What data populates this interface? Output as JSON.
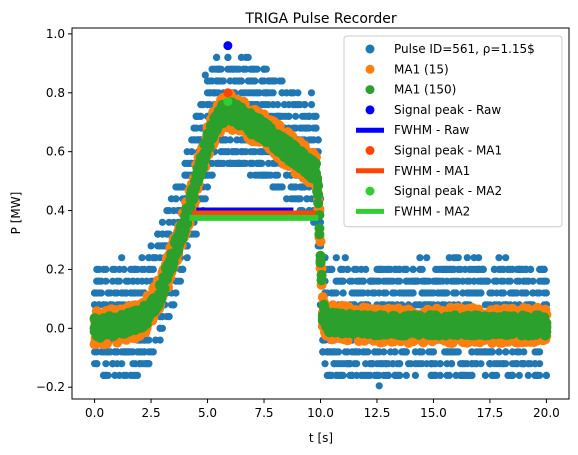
{
  "chart_data": {
    "type": "scatter",
    "title": "TRIGA Pulse Recorder",
    "xlabel": "t [s]",
    "ylabel": "P [MW]",
    "xlim": [
      -1.0,
      21.0
    ],
    "ylim": [
      -0.24,
      1.02
    ],
    "xticks": [
      0.0,
      2.5,
      5.0,
      7.5,
      10.0,
      12.5,
      15.0,
      17.5,
      20.0
    ],
    "xtick_labels": [
      "0.0",
      "2.5",
      "5.0",
      "7.5",
      "10.0",
      "12.5",
      "15.0",
      "17.5",
      "20.0"
    ],
    "yticks": [
      -0.2,
      0.0,
      0.2,
      0.4,
      0.6,
      0.8,
      1.0
    ],
    "ytick_labels": [
      "−0.2",
      "0.0",
      "0.2",
      "0.4",
      "0.6",
      "0.8",
      "1.0"
    ],
    "grid": false,
    "legend_position": "top-right",
    "colors": {
      "raw": "#1f77b4",
      "ma1": "#ff7f0e",
      "ma2": "#2ca02c",
      "peak_raw": "#0000ff",
      "peak_ma1": "#ff4500",
      "peak_ma2": "#32cd32"
    },
    "signal_profile": {
      "t": [
        0.0,
        1.0,
        2.0,
        2.5,
        3.0,
        3.5,
        4.0,
        4.5,
        5.0,
        5.5,
        5.9,
        6.5,
        7.0,
        7.5,
        8.0,
        8.5,
        9.0,
        9.5,
        9.8,
        9.9,
        10.0,
        10.1,
        10.3,
        12.5,
        15.0,
        17.5,
        20.0
      ],
      "p": [
        0.0,
        0.01,
        0.03,
        0.06,
        0.14,
        0.25,
        0.36,
        0.5,
        0.63,
        0.72,
        0.74,
        0.72,
        0.69,
        0.67,
        0.64,
        0.61,
        0.58,
        0.55,
        0.53,
        0.45,
        0.25,
        0.06,
        0.02,
        0.01,
        0.01,
        0.01,
        0.01
      ]
    },
    "series": [
      {
        "name": "Pulse ID=561, ρ=1.15$",
        "kind": "scatter",
        "color": "#1f77b4",
        "noise_levels": [
          -0.16,
          -0.12,
          -0.08,
          -0.04,
          0.0,
          0.04,
          0.08,
          0.12,
          0.16,
          0.2
        ],
        "t_step": 0.1,
        "t_range": [
          0.0,
          20.0
        ]
      },
      {
        "name": "MA1 (15)",
        "kind": "scatter",
        "color": "#ff7f0e",
        "band_halfwidth": 0.06,
        "t_range": [
          0.0,
          20.0
        ]
      },
      {
        "name": "MA1 (150)",
        "kind": "scatter",
        "color": "#2ca02c",
        "band_halfwidth": 0.035,
        "t_range": [
          0.0,
          20.0
        ]
      }
    ],
    "markers": [
      {
        "name": "Signal peak - Raw",
        "x": 5.9,
        "y": 0.96,
        "color": "#0000ff"
      },
      {
        "name": "Signal peak - MA1",
        "x": 5.9,
        "y": 0.8,
        "color": "#ff4500"
      },
      {
        "name": "Signal peak - MA2",
        "x": 5.9,
        "y": 0.77,
        "color": "#32cd32"
      }
    ],
    "fwhm_lines": [
      {
        "name": "FWHM - Raw",
        "x0": 4.5,
        "x1": 8.8,
        "y": 0.4,
        "color": "#0000ff"
      },
      {
        "name": "FWHM - MA1",
        "x0": 4.3,
        "x1": 9.8,
        "y": 0.39,
        "color": "#ff4500"
      },
      {
        "name": "FWHM - MA2",
        "x0": 4.2,
        "x1": 9.9,
        "y": 0.375,
        "color": "#32cd32"
      }
    ],
    "legend": [
      {
        "label": "Pulse ID=561, ρ=1.15$",
        "marker": "dot",
        "color": "#1f77b4"
      },
      {
        "label": "MA1 (15)",
        "marker": "dot",
        "color": "#ff7f0e"
      },
      {
        "label": "MA1 (150)",
        "marker": "dot",
        "color": "#2ca02c"
      },
      {
        "label": "Signal peak - Raw",
        "marker": "dot",
        "color": "#0000ff"
      },
      {
        "label": "FWHM - Raw",
        "marker": "line",
        "color": "#0000ff"
      },
      {
        "label": "Signal peak - MA1",
        "marker": "dot",
        "color": "#ff4500"
      },
      {
        "label": "FWHM - MA1",
        "marker": "line",
        "color": "#ff4500"
      },
      {
        "label": "Signal peak - MA2",
        "marker": "dot",
        "color": "#32cd32"
      },
      {
        "label": "FWHM - MA2",
        "marker": "line",
        "color": "#32cd32"
      }
    ]
  }
}
